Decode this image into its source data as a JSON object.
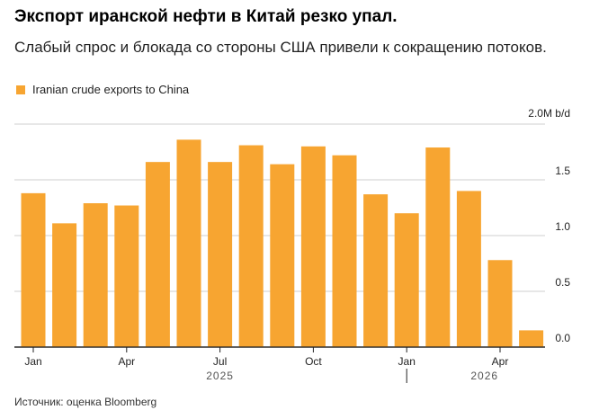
{
  "header": {
    "title": "Экспорт иранской нефти в Китай резко упал.",
    "subtitle": "Слабый спрос и блокада со стороны США привели к сокращению потоков."
  },
  "source": "Источник: оценка Bloomberg",
  "chart_data": {
    "type": "bar",
    "legend": {
      "position": "top-left",
      "color": "#f7a531"
    },
    "series": [
      {
        "name": "Iranian crude exports to China",
        "color": "#f7a531",
        "values": [
          1.38,
          1.11,
          1.29,
          1.27,
          1.66,
          1.86,
          1.66,
          1.81,
          1.64,
          1.8,
          1.72,
          1.37,
          1.2,
          1.79,
          1.4,
          0.78,
          0.15
        ]
      }
    ],
    "categories": [
      "Jan 2025",
      "Feb 2025",
      "Mar 2025",
      "Apr 2025",
      "May 2025",
      "Jun 2025",
      "Jul 2025",
      "Aug 2025",
      "Sep 2025",
      "Oct 2025",
      "Nov 2025",
      "Dec 2025",
      "Jan 2026",
      "Feb 2026",
      "Mar 2026",
      "Apr 2026",
      "May 2026"
    ],
    "x_tick_labels": [
      {
        "index": 0,
        "label": "Jan"
      },
      {
        "index": 3,
        "label": "Apr"
      },
      {
        "index": 6,
        "label": "Jul"
      },
      {
        "index": 9,
        "label": "Oct"
      },
      {
        "index": 12,
        "label": "Jan"
      },
      {
        "index": 15,
        "label": "Apr"
      }
    ],
    "year_labels": [
      {
        "center_index": 6,
        "label": "2025",
        "divider_index": 12
      },
      {
        "center_index": 14.5,
        "label": "2026"
      }
    ],
    "y_ticks": [
      {
        "value": 0,
        "label": "0.0"
      },
      {
        "value": 0.5,
        "label": "0.5"
      },
      {
        "value": 1.0,
        "label": "1.0"
      },
      {
        "value": 1.5,
        "label": "1.5"
      },
      {
        "value": 2.0,
        "label": "2.0M b/d"
      }
    ],
    "ylim": [
      0,
      2.0
    ],
    "grid": true,
    "y_axis_side": "right"
  }
}
